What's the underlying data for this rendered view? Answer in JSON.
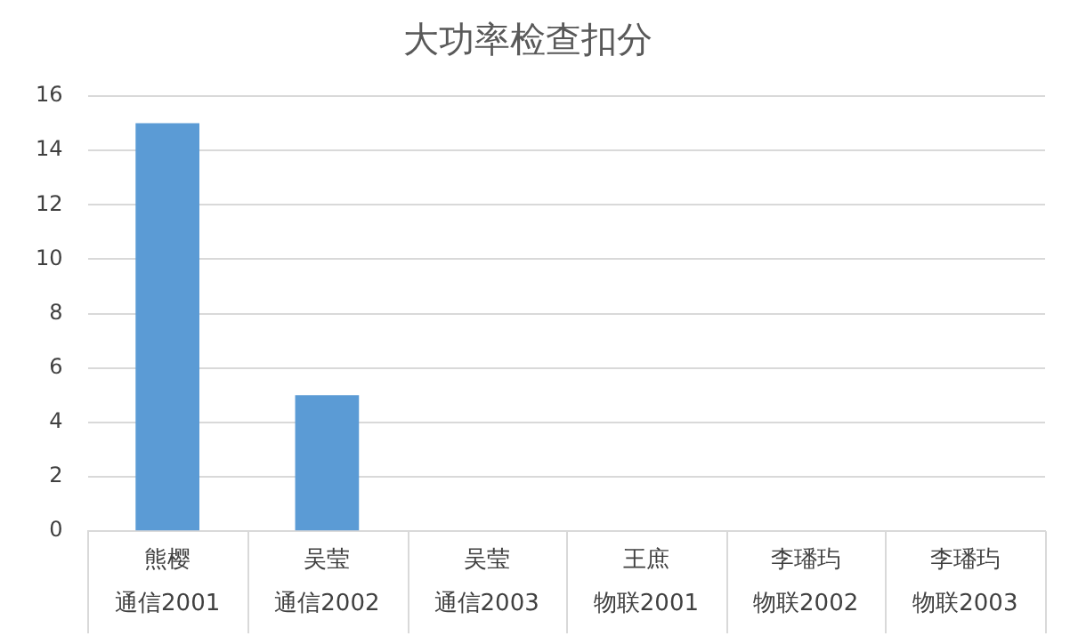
{
  "chart_data": {
    "type": "bar",
    "title": "大功率检查扣分",
    "categories": [
      "熊樱通信2001",
      "吴莹通信2002",
      "吴莹通信2003",
      "王庶物联2001",
      "李璠玙物联2002",
      "李璠玙物联2003"
    ],
    "values": [
      15,
      5,
      0,
      0,
      0,
      0
    ],
    "color": "#5b9bd5",
    "ylim": [
      0,
      16
    ],
    "yticks": [
      0,
      2,
      4,
      6,
      8,
      10,
      12,
      14,
      16
    ],
    "grid": "y",
    "legend": false
  }
}
